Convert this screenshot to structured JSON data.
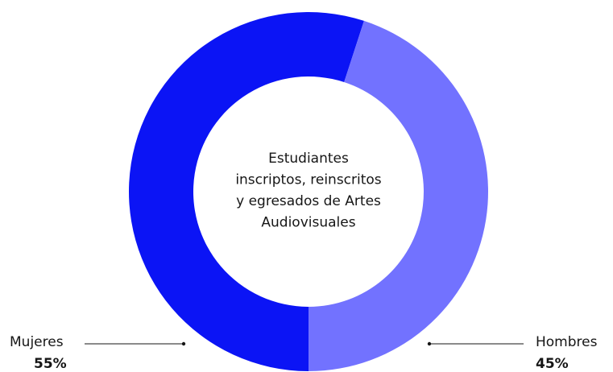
{
  "chart_data": {
    "type": "donut",
    "title_lines": [
      "Estudiantes",
      "inscriptos, reinscritos",
      "y egresados de Artes",
      "Audiovisuales"
    ],
    "categories": [
      "Mujeres",
      "Hombres"
    ],
    "values": [
      55,
      45
    ],
    "value_labels": [
      "55%",
      "45%"
    ],
    "colors": [
      "#0b14f5",
      "#7272ff"
    ]
  }
}
